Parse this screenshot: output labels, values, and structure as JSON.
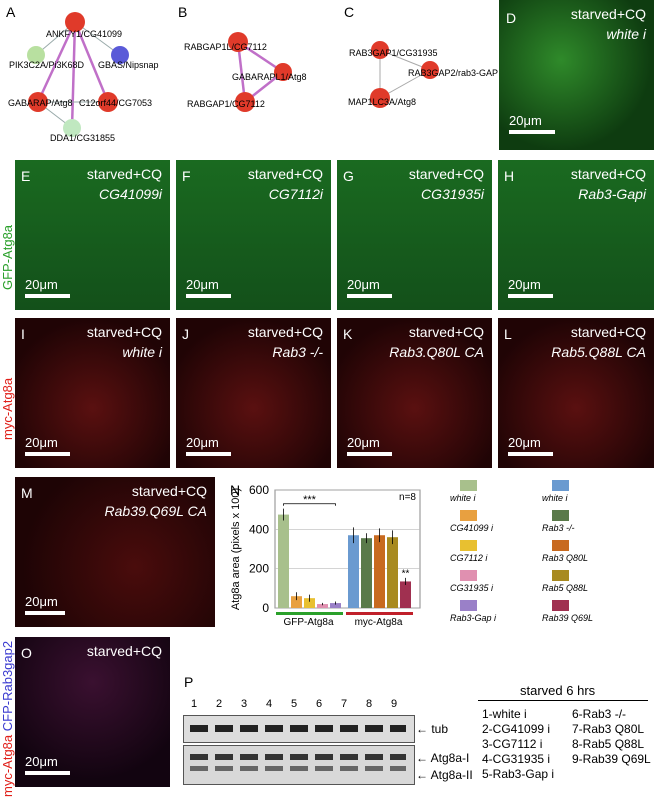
{
  "panels": {
    "A": {
      "letter": "A",
      "nodes": [
        "ANKFY1/CG41099",
        "PIK3C2A/Pi3K68D",
        "GBAS/Nipsnap",
        "GABARAP/Atg8",
        "C12orf44/CG7053",
        "DDA1/CG31855"
      ]
    },
    "B": {
      "letter": "B",
      "nodes": [
        "RABGAP1L/CG7112",
        "GABARAPL1/Atg8",
        "RABGAP1/CG7112"
      ]
    },
    "C": {
      "letter": "C",
      "nodes": [
        "RAB3GAP1/CG31935",
        "RAB3GAP2/rab3-GAP",
        "MAP1LC3A/Atg8"
      ]
    },
    "D": {
      "letter": "D",
      "condition": "starved+CQ",
      "genotype": "white i",
      "scale": "20μm"
    },
    "E": {
      "letter": "E",
      "condition": "starved+CQ",
      "genotype": "CG41099i",
      "scale": "20μm"
    },
    "F": {
      "letter": "F",
      "condition": "starved+CQ",
      "genotype": "CG7112i",
      "scale": "20μm"
    },
    "G": {
      "letter": "G",
      "condition": "starved+CQ",
      "genotype": "CG31935i",
      "scale": "20μm"
    },
    "H": {
      "letter": "H",
      "condition": "starved+CQ",
      "genotype": "Rab3-Gapi",
      "scale": "20μm"
    },
    "I": {
      "letter": "I",
      "condition": "starved+CQ",
      "genotype": "white i",
      "scale": "20μm"
    },
    "J": {
      "letter": "J",
      "condition": "starved+CQ",
      "genotype": "Rab3 -/-",
      "scale": "20μm"
    },
    "K": {
      "letter": "K",
      "condition": "starved+CQ",
      "genotype": "Rab3.Q80L CA",
      "scale": "20μm"
    },
    "L": {
      "letter": "L",
      "condition": "starved+CQ",
      "genotype": "Rab5.Q88L CA",
      "scale": "20μm"
    },
    "M": {
      "letter": "M",
      "condition": "starved+CQ",
      "genotype": "Rab39.Q69L CA",
      "scale": "20μm"
    },
    "N": {
      "letter": "N"
    },
    "O": {
      "letter": "O",
      "condition": "starved+CQ",
      "scale": "20μm"
    },
    "P": {
      "letter": "P"
    }
  },
  "side_labels": {
    "gfp": "GFP-Atg8a",
    "myc": "myc-Atg8a",
    "o_red": "myc-Atg8a",
    "o_blue": "CFP-Rab3gap2"
  },
  "colors": {
    "gfp_label": "#2aa02a",
    "myc_label": "#e0201a",
    "cfp_label": "#3a3ad0"
  },
  "chart_data": {
    "type": "bar",
    "ylabel": "Atg8a area (pixels x 100)",
    "ylim": [
      0,
      600
    ],
    "yticks": [
      0,
      200,
      400,
      600
    ],
    "annotation_n": "n=8",
    "significance": [
      "***",
      "**"
    ],
    "groups": [
      {
        "name": "GFP-Atg8a",
        "color": "#2aa02a"
      },
      {
        "name": "myc-Atg8a",
        "color": "#c0202a"
      }
    ],
    "series": [
      {
        "name": "white i",
        "group": "GFP-Atg8a",
        "value": 475,
        "err": 30,
        "color": "#a8c08c"
      },
      {
        "name": "CG41099 i",
        "group": "GFP-Atg8a",
        "value": 60,
        "err": 20,
        "color": "#e8a040"
      },
      {
        "name": "CG7112 i",
        "group": "GFP-Atg8a",
        "value": 50,
        "err": 18,
        "color": "#e8c030"
      },
      {
        "name": "CG31935 i",
        "group": "GFP-Atg8a",
        "value": 20,
        "err": 6,
        "color": "#e090b0"
      },
      {
        "name": "Rab3-Gap i",
        "group": "GFP-Atg8a",
        "value": 25,
        "err": 8,
        "color": "#9a80c8"
      },
      {
        "name": "white i",
        "group": "myc-Atg8a",
        "value": 370,
        "err": 40,
        "color": "#6a9ad0"
      },
      {
        "name": "Rab3 -/-",
        "group": "myc-Atg8a",
        "value": 355,
        "err": 25,
        "color": "#5a7a4a"
      },
      {
        "name": "Rab3 Q80L",
        "group": "myc-Atg8a",
        "value": 370,
        "err": 35,
        "color": "#c86a20"
      },
      {
        "name": "Rab5 Q88L",
        "group": "myc-Atg8a",
        "value": 360,
        "err": 35,
        "color": "#a88a20"
      },
      {
        "name": "Rab39 Q69L",
        "group": "myc-Atg8a",
        "value": 135,
        "err": 18,
        "color": "#a03050"
      }
    ]
  },
  "legend": [
    {
      "label": "white i",
      "color": "#a8c08c"
    },
    {
      "label": "white i",
      "color": "#6a9ad0"
    },
    {
      "label": "CG41099 i",
      "color": "#e8a040"
    },
    {
      "label": "Rab3 -/-",
      "color": "#5a7a4a"
    },
    {
      "label": "CG7112 i",
      "color": "#e8c030"
    },
    {
      "label": "Rab3 Q80L",
      "color": "#c86a20"
    },
    {
      "label": "CG31935 i",
      "color": "#e090b0"
    },
    {
      "label": "Rab5 Q88L",
      "color": "#a88a20"
    },
    {
      "label": "Rab3-Gap i",
      "color": "#9a80c8"
    },
    {
      "label": "Rab39 Q69L",
      "color": "#a03050"
    }
  ],
  "blot": {
    "lanes": [
      "1",
      "2",
      "3",
      "4",
      "5",
      "6",
      "7",
      "8",
      "9"
    ],
    "band_tub": "tub",
    "band_1": "Atg8a-I",
    "band_2": "Atg8a-II",
    "key_title": "starved 6 hrs",
    "key": [
      "1-white i",
      "6-Rab3 -/-",
      "2-CG41099 i",
      "7-Rab3 Q80L",
      "3-CG7112 i",
      "8-Rab5 Q88L",
      "4-CG31935 i",
      "9-Rab39 Q69L",
      "5-Rab3-Gap i"
    ]
  }
}
